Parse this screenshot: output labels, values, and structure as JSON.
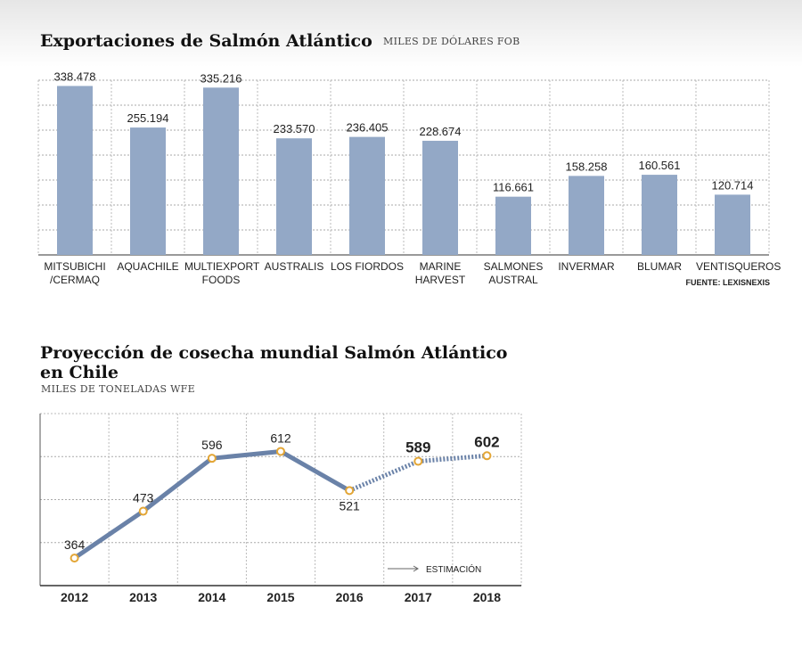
{
  "chart_data": [
    {
      "type": "bar",
      "title": "Exportaciones de Salmón Atlántico",
      "subtitle": "MILES DE DÓLARES FOB",
      "categories": [
        "MITSUBICHI\n/CERMAQ",
        "AQUACHILE",
        "MULTIEXPORT\nFOODS",
        "AUSTRALIS",
        "LOS\nFIORDOS",
        "MARINE\nHARVEST",
        "SALMONES\nAUSTRAL",
        "INVERMAR",
        "BLUMAR",
        "VENTISQUEROS"
      ],
      "values": [
        338478,
        255194,
        335216,
        233570,
        236405,
        228674,
        116661,
        158258,
        160561,
        120714
      ],
      "value_labels": [
        "338.478",
        "255.194",
        "335.216",
        "233.570",
        "236.405",
        "228.674",
        "116.661",
        "158.258",
        "160.561",
        "120.714"
      ],
      "color": "#93a8c6",
      "ylim": [
        0,
        350000
      ],
      "yticks": [
        50000,
        100000,
        150000,
        200000,
        250000,
        300000,
        350000
      ],
      "grid": true,
      "source": "FUENTE: LEXISNEXIS"
    },
    {
      "type": "line",
      "title": "Proyección de cosecha mundial Salmón Atlántico\nen Chile",
      "subtitle": "MILES DE TONELADAS WFE",
      "categories": [
        "2012",
        "2013",
        "2014",
        "2015",
        "2016",
        "2017",
        "2018"
      ],
      "values": [
        364,
        473,
        596,
        612,
        521,
        589,
        602
      ],
      "estimated": [
        false,
        false,
        false,
        false,
        false,
        true,
        true
      ],
      "legend_label": "ESTIMACIÓN",
      "color": "#6a82a8",
      "marker_color": "#e3a636",
      "ylim": [
        300,
        700
      ],
      "yticks": [
        400,
        500,
        600
      ],
      "grid": true
    }
  ]
}
